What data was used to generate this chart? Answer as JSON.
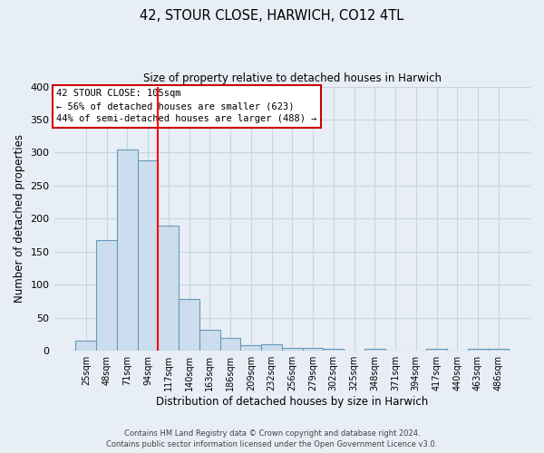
{
  "title": "42, STOUR CLOSE, HARWICH, CO12 4TL",
  "subtitle": "Size of property relative to detached houses in Harwich",
  "xlabel": "Distribution of detached houses by size in Harwich",
  "ylabel": "Number of detached properties",
  "bar_labels": [
    "25sqm",
    "48sqm",
    "71sqm",
    "94sqm",
    "117sqm",
    "140sqm",
    "163sqm",
    "186sqm",
    "209sqm",
    "232sqm",
    "256sqm",
    "279sqm",
    "302sqm",
    "325sqm",
    "348sqm",
    "371sqm",
    "394sqm",
    "417sqm",
    "440sqm",
    "463sqm",
    "486sqm"
  ],
  "bar_values": [
    16,
    168,
    305,
    288,
    190,
    78,
    32,
    20,
    9,
    10,
    5,
    5,
    3,
    0,
    3,
    0,
    0,
    3,
    0,
    3,
    3
  ],
  "bar_color": "#ccdeed",
  "bar_edge_color": "#6699bb",
  "red_line_x": 3.5,
  "property_label": "42 STOUR CLOSE: 105sqm",
  "annotation_line1": "← 56% of detached houses are smaller (623)",
  "annotation_line2": "44% of semi-detached houses are larger (488) →",
  "ylim": [
    0,
    400
  ],
  "yticks": [
    0,
    50,
    100,
    150,
    200,
    250,
    300,
    350,
    400
  ],
  "footer_line1": "Contains HM Land Registry data © Crown copyright and database right 2024.",
  "footer_line2": "Contains public sector information licensed under the Open Government Licence v3.0.",
  "background_color": "#e8eef5",
  "grid_color": "#d0dae8"
}
